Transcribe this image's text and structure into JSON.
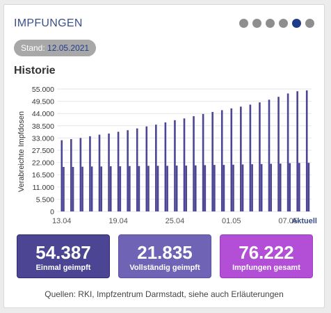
{
  "card": {
    "title": "IMPFUNGEN",
    "dots": 6,
    "active_dot": 5,
    "stand_label": "Stand:",
    "stand_date": "12.05.2021"
  },
  "section_title": "Historie",
  "chart_data": {
    "type": "bar",
    "ylabel": "Verabreichte Impfdosen",
    "y_ticks": [
      "0",
      "5.500",
      "11.000",
      "16.500",
      "22.000",
      "27.500",
      "33.000",
      "38.500",
      "44.000",
      "49.500",
      "55.000"
    ],
    "ylim": [
      0,
      55000
    ],
    "x_tick_labels": [
      "13.04",
      "19.04",
      "25.04",
      "01.05",
      "07.05",
      "Aktuell"
    ],
    "grid": true,
    "series": [
      {
        "values": [
          32000,
          32500,
          33000,
          33800,
          34500,
          35000,
          35800,
          36500,
          37300,
          38200,
          39000,
          40000,
          41000,
          41800,
          42800,
          43800,
          44700,
          45500,
          46300,
          47100,
          48000,
          49000,
          50200,
          51500,
          53000,
          54000,
          54387
        ]
      },
      {
        "values": [
          20000,
          20000,
          20100,
          20200,
          20200,
          20300,
          20300,
          20400,
          20400,
          20500,
          20500,
          20500,
          20600,
          20600,
          20700,
          20800,
          20900,
          20900,
          21000,
          21100,
          21200,
          21300,
          21400,
          21500,
          21700,
          21800,
          21835
        ]
      }
    ],
    "colors": {
      "bar": "#4b4594",
      "grid": "#e6e6e6",
      "axis_text": "#333333",
      "x_tick_text": "#555555",
      "aktuell": "#3a4e8c"
    }
  },
  "stats": [
    {
      "value": "54.387",
      "label": "Einmal geimpft"
    },
    {
      "value": "21.835",
      "label": "Vollständig geimpft"
    },
    {
      "value": "76.222",
      "label": "Impfungen gesamt"
    }
  ],
  "sources": "Quellen: RKI, Impfzentrum Darmstadt, siehe auch Erläuterungen"
}
